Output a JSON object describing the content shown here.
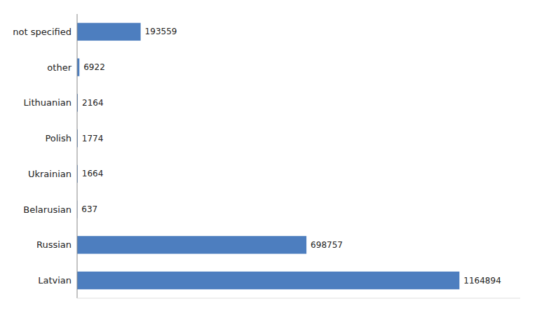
{
  "chart_data": {
    "type": "bar",
    "orientation": "horizontal",
    "categories": [
      "not specified",
      "other",
      "Lithuanian",
      "Polish",
      "Ukrainian",
      "Belarusian",
      "Russian",
      "Latvian"
    ],
    "values": [
      193559,
      6922,
      2164,
      1774,
      1664,
      637,
      698757,
      1164894
    ],
    "color": "#4d7ebf",
    "xlim": [
      0,
      1350000
    ],
    "grid": false,
    "data_labels": true,
    "tick_labels": "y"
  }
}
